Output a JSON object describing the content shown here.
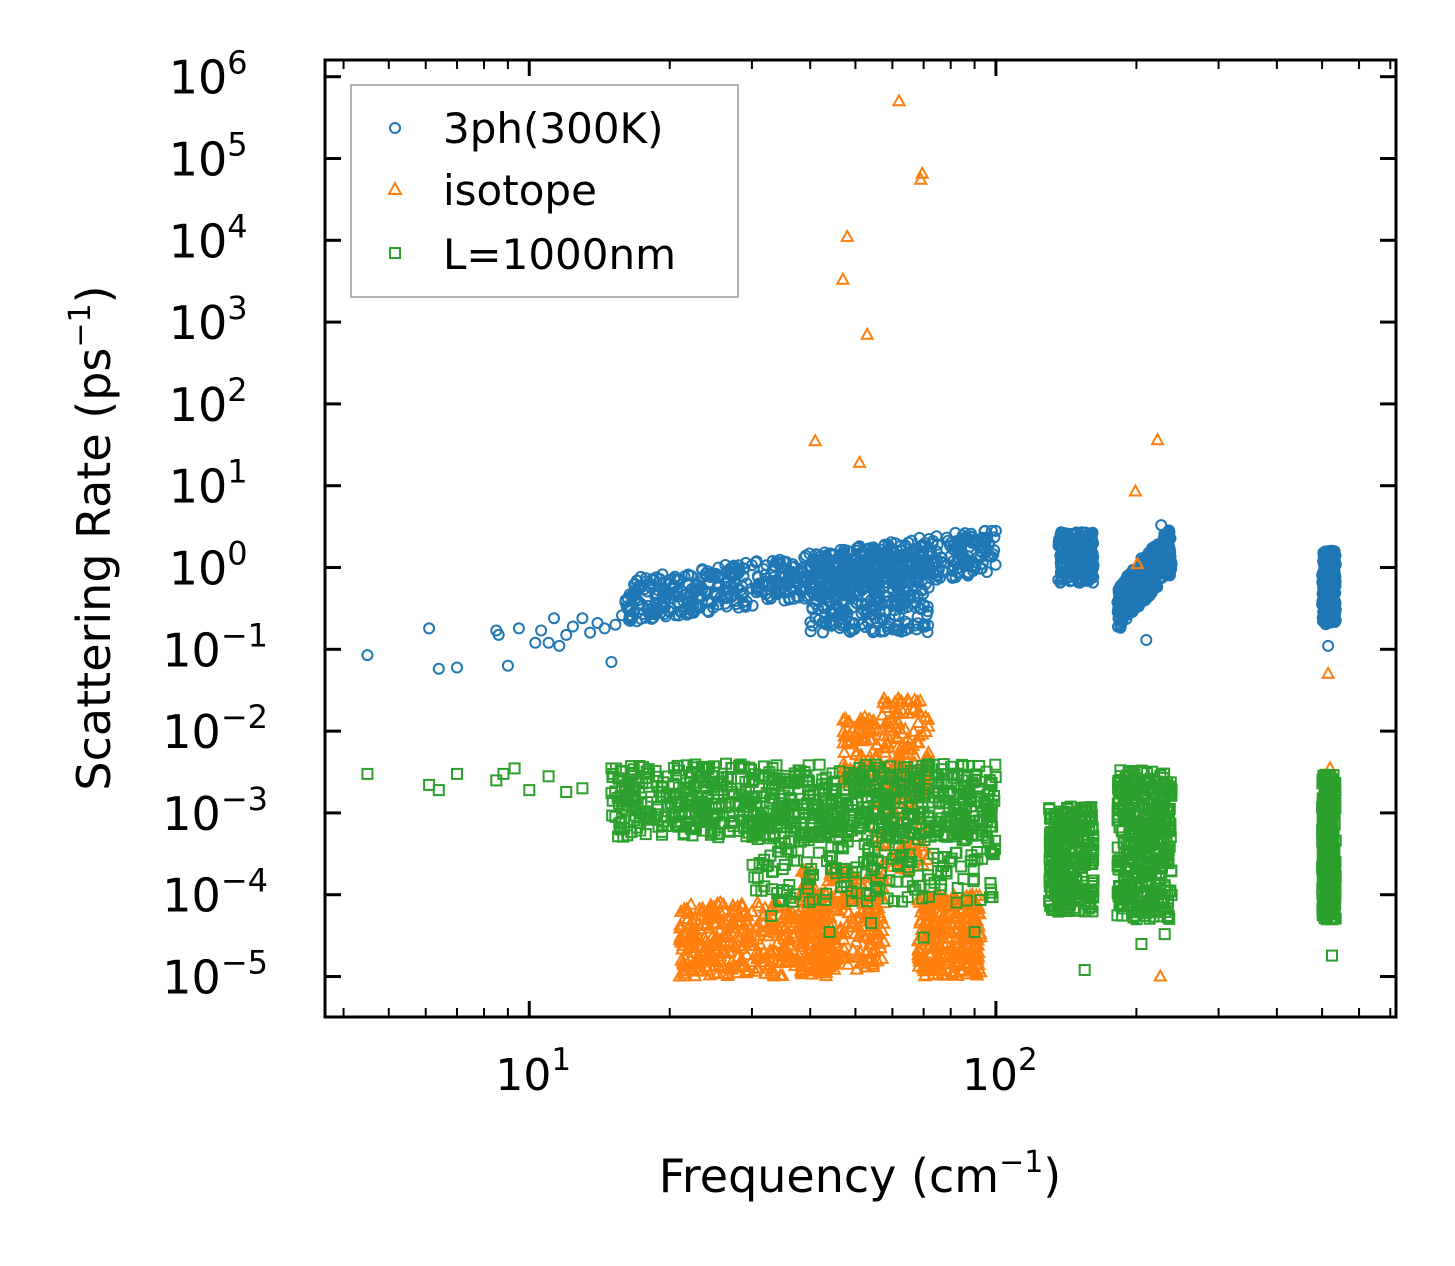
{
  "chart_data": {
    "type": "scatter",
    "title": "",
    "xlabel": "Frequency (cm",
    "xlabel_sup": "−1",
    "xlabel_close": ")",
    "ylabel": "Scattering Rate (ps",
    "ylabel_sup": "−1",
    "ylabel_close": ")",
    "xscale": "log",
    "yscale": "log",
    "xlim": [
      3.65,
      720
    ],
    "ylim": [
      3.2e-06,
      1600000.0
    ],
    "x_ticks": [
      {
        "value": 10,
        "base": "10",
        "exp": "1"
      },
      {
        "value": 100,
        "base": "10",
        "exp": "2"
      }
    ],
    "y_ticks": [
      {
        "value": 1000000.0,
        "base": "10",
        "exp": "6"
      },
      {
        "value": 100000.0,
        "base": "10",
        "exp": "5"
      },
      {
        "value": 10000.0,
        "base": "10",
        "exp": "4"
      },
      {
        "value": 1000.0,
        "base": "10",
        "exp": "3"
      },
      {
        "value": 100.0,
        "base": "10",
        "exp": "2"
      },
      {
        "value": 10.0,
        "base": "10",
        "exp": "1"
      },
      {
        "value": 1.0,
        "base": "10",
        "exp": "0"
      },
      {
        "value": 0.1,
        "base": "10",
        "exp": "−1"
      },
      {
        "value": 0.01,
        "base": "10",
        "exp": "−2"
      },
      {
        "value": 0.001,
        "base": "10",
        "exp": "−3"
      },
      {
        "value": 0.0001,
        "base": "10",
        "exp": "−4"
      },
      {
        "value": 1e-05,
        "base": "10",
        "exp": "−5"
      }
    ],
    "grid": false,
    "legend_position": "top-left",
    "series": [
      {
        "name": "3ph(300K)",
        "marker": "circle",
        "color": "#1f77b4",
        "points": [
          [
            4.5,
            0.085
          ],
          [
            6.1,
            0.18
          ],
          [
            6.4,
            0.058
          ],
          [
            7.0,
            0.06
          ],
          [
            8.5,
            0.17
          ],
          [
            8.6,
            0.15
          ],
          [
            9.0,
            0.063
          ],
          [
            9.5,
            0.18
          ],
          [
            10.3,
            0.12
          ],
          [
            10.6,
            0.17
          ],
          [
            11.0,
            0.12
          ],
          [
            11.3,
            0.24
          ],
          [
            11.6,
            0.11
          ],
          [
            12.0,
            0.15
          ],
          [
            12.4,
            0.19
          ],
          [
            13.0,
            0.24
          ],
          [
            13.5,
            0.16
          ],
          [
            14.0,
            0.21
          ],
          [
            14.5,
            0.18
          ],
          [
            15.0,
            0.07
          ],
          [
            15.3,
            0.2
          ],
          [
            15.8,
            0.26
          ],
          [
            16.5,
            0.3
          ],
          [
            17.0,
            0.22
          ],
          [
            18.0,
            0.28
          ],
          [
            19.5,
            0.32
          ],
          [
            21.0,
            0.36
          ],
          [
            23.0,
            0.42
          ],
          [
            25.0,
            0.48
          ],
          [
            28.0,
            0.55
          ],
          [
            31.0,
            0.52
          ],
          [
            34.0,
            0.62
          ],
          [
            36.0,
            0.8
          ],
          [
            38.0,
            0.9
          ],
          [
            41.0,
            1.2
          ],
          [
            44.0,
            0.65
          ],
          [
            47.0,
            0.55
          ],
          [
            50.0,
            0.9
          ],
          [
            53.0,
            0.7
          ],
          [
            56.0,
            1.1
          ],
          [
            60.0,
            0.65
          ],
          [
            63.0,
            1.3
          ],
          [
            67.0,
            1.5
          ],
          [
            70.0,
            1.8
          ],
          [
            75.0,
            1.9
          ],
          [
            80.0,
            2.0
          ],
          [
            88.0,
            1.8
          ],
          [
            95.0,
            2.3
          ],
          [
            100.0,
            2.8
          ],
          [
            138.0,
            2.7
          ],
          [
            142.0,
            1.4
          ],
          [
            148.0,
            1.6
          ],
          [
            155.0,
            0.9
          ],
          [
            160.0,
            0.75
          ],
          [
            185.0,
            0.6
          ],
          [
            195.0,
            0.4
          ],
          [
            205.0,
            1.3
          ],
          [
            210.0,
            0.13
          ],
          [
            215.0,
            0.5
          ],
          [
            222.0,
            1.1
          ],
          [
            226.0,
            3.3
          ],
          [
            232.0,
            1.2
          ],
          [
            236.0,
            0.8
          ],
          [
            505.0,
            1.3
          ],
          [
            510.0,
            0.6
          ],
          [
            515.0,
            0.11
          ],
          [
            520.0,
            0.9
          ],
          [
            525.0,
            1.6
          ],
          [
            532.0,
            0.7
          ]
        ],
        "clusters": [
          {
            "x": [
              16,
              100
            ],
            "y": [
              0.2,
              2.8
            ],
            "n": 700
          },
          {
            "x": [
              40,
              72
            ],
            "y": [
              0.16,
              1.5
            ],
            "n": 350
          },
          {
            "x": [
              136,
              162
            ],
            "y": [
              0.65,
              2.7
            ],
            "n": 220
          },
          {
            "x": [
              182,
              238
            ],
            "y": [
              0.14,
              3.2
            ],
            "n": 360
          },
          {
            "x": [
              500,
              535
            ],
            "y": [
              0.2,
              1.6
            ],
            "n": 250
          }
        ]
      },
      {
        "name": "isotope",
        "marker": "triangle",
        "color": "#ff7f0e",
        "points": [
          [
            62.0,
            500000
          ],
          [
            69.5,
            65000
          ],
          [
            69.0,
            55000
          ],
          [
            48.0,
            11000
          ],
          [
            47.0,
            3300
          ],
          [
            53.0,
            700
          ],
          [
            41.0,
            35
          ],
          [
            51.0,
            19
          ],
          [
            222.0,
            36
          ],
          [
            199.0,
            8.5
          ],
          [
            201.0,
            1.1
          ],
          [
            515.0,
            0.05
          ],
          [
            520.0,
            0.0035
          ],
          [
            225.0,
            1e-05
          ],
          [
            21.0,
            1e-05
          ]
        ],
        "clusters": [
          {
            "x": [
              21,
              45
            ],
            "y": [
              1e-05,
              8e-05
            ],
            "n": 420
          },
          {
            "x": [
              38,
              58
            ],
            "y": [
              1.2e-05,
              0.0002
            ],
            "n": 260
          },
          {
            "x": [
              47,
              56
            ],
            "y": [
              0.002,
              0.015
            ],
            "n": 90
          },
          {
            "x": [
              57,
              72
            ],
            "y": [
              0.0015,
              0.025
            ],
            "n": 140
          },
          {
            "x": [
              68,
              93
            ],
            "y": [
              1e-05,
              0.0001
            ],
            "n": 300
          },
          {
            "x": [
              55,
              72
            ],
            "y": [
              0.0002,
              0.0015
            ],
            "n": 60
          }
        ]
      },
      {
        "name": "L=1000nm",
        "marker": "square",
        "color": "#2ca02c",
        "points": [
          [
            4.5,
            0.003
          ],
          [
            6.1,
            0.0022
          ],
          [
            6.4,
            0.0019
          ],
          [
            7.0,
            0.003
          ],
          [
            8.5,
            0.0025
          ],
          [
            8.8,
            0.003
          ],
          [
            9.3,
            0.0035
          ],
          [
            10.0,
            0.0019
          ],
          [
            11.0,
            0.0028
          ],
          [
            12.0,
            0.0018
          ],
          [
            13.0,
            0.002
          ],
          [
            15.0,
            0.0035
          ],
          [
            16.0,
            0.0016
          ],
          [
            33.0,
            5.5e-05
          ],
          [
            44.0,
            3.5e-05
          ],
          [
            54.0,
            4.5e-05
          ],
          [
            70.0,
            3e-05
          ],
          [
            90.0,
            3.5e-05
          ],
          [
            155.0,
            1.2e-05
          ],
          [
            205.0,
            2.5e-05
          ],
          [
            230.0,
            3.3e-05
          ],
          [
            525.0,
            1.8e-05
          ]
        ],
        "clusters": [
          {
            "x": [
              15,
              100
            ],
            "y": [
              0.0005,
              0.004
            ],
            "n": 800
          },
          {
            "x": [
              30,
              100
            ],
            "y": [
              8e-05,
              0.001
            ],
            "n": 260
          },
          {
            "x": [
              130,
              162
            ],
            "y": [
              6e-05,
              0.0012
            ],
            "n": 300
          },
          {
            "x": [
              182,
              238
            ],
            "y": [
              5e-05,
              0.0035
            ],
            "n": 420
          },
          {
            "x": [
              500,
              535
            ],
            "y": [
              5e-05,
              0.003
            ],
            "n": 280
          }
        ]
      }
    ]
  }
}
